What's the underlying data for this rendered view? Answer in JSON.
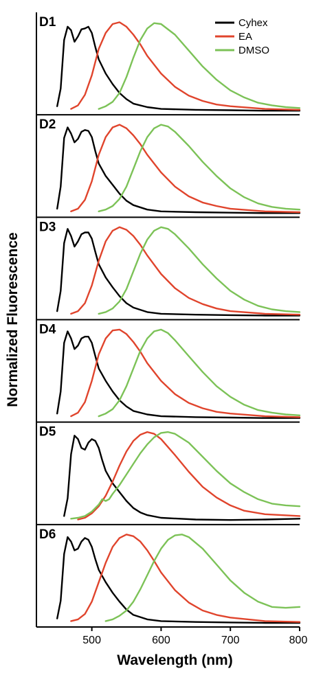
{
  "chart_data": {
    "type": "line",
    "xlabel": "Wavelength (nm)",
    "ylabel": "Normalized Fluorescence",
    "xlim": [
      420,
      800
    ],
    "xticks": [
      500,
      600,
      700,
      800
    ],
    "ylim": [
      0,
      1.05
    ],
    "legend_placement": "top-right of first panel",
    "legend": [
      "Cyhex",
      "EA",
      "DMSO"
    ],
    "colors": {
      "Cyhex": "#000000",
      "EA": "#e0442c",
      "DMSO": "#7cc257"
    },
    "panels": [
      {
        "label": "D1",
        "series": [
          {
            "name": "Cyhex",
            "x": [
              450,
              455,
              460,
              465,
              470,
              475,
              480,
              485,
              490,
              495,
              500,
              505,
              510,
              520,
              530,
              540,
              550,
              560,
              580,
              600,
              650,
              700,
              750,
              800
            ],
            "y": [
              0.05,
              0.25,
              0.8,
              0.95,
              0.91,
              0.78,
              0.84,
              0.92,
              0.93,
              0.95,
              0.88,
              0.72,
              0.58,
              0.42,
              0.3,
              0.2,
              0.13,
              0.08,
              0.04,
              0.02,
              0.01,
              0.005,
              0.0,
              0.0
            ]
          },
          {
            "name": "EA",
            "x": [
              470,
              480,
              490,
              500,
              510,
              520,
              530,
              540,
              550,
              560,
              570,
              580,
              600,
              620,
              640,
              660,
              680,
              700,
              750,
              800
            ],
            "y": [
              0.02,
              0.06,
              0.18,
              0.4,
              0.7,
              0.88,
              0.98,
              1.0,
              0.95,
              0.86,
              0.75,
              0.62,
              0.42,
              0.27,
              0.17,
              0.11,
              0.07,
              0.05,
              0.02,
              0.01
            ]
          },
          {
            "name": "DMSO",
            "x": [
              510,
              520,
              530,
              540,
              550,
              560,
              570,
              580,
              590,
              600,
              620,
              640,
              660,
              680,
              700,
              720,
              740,
              760,
              780,
              800
            ],
            "y": [
              0.02,
              0.05,
              0.1,
              0.2,
              0.38,
              0.6,
              0.8,
              0.93,
              0.99,
              0.98,
              0.86,
              0.68,
              0.5,
              0.35,
              0.23,
              0.15,
              0.09,
              0.06,
              0.04,
              0.03
            ]
          }
        ]
      },
      {
        "label": "D2",
        "series": [
          {
            "name": "Cyhex",
            "x": [
              450,
              455,
              460,
              465,
              470,
              475,
              480,
              485,
              490,
              495,
              500,
              505,
              510,
              520,
              530,
              540,
              550,
              560,
              580,
              600,
              650,
              700,
              750,
              800
            ],
            "y": [
              0.05,
              0.3,
              0.85,
              0.97,
              0.9,
              0.8,
              0.84,
              0.92,
              0.94,
              0.93,
              0.86,
              0.7,
              0.56,
              0.42,
              0.32,
              0.22,
              0.14,
              0.09,
              0.04,
              0.02,
              0.01,
              0.005,
              0.0,
              0.0
            ]
          },
          {
            "name": "EA",
            "x": [
              470,
              480,
              490,
              500,
              510,
              520,
              530,
              540,
              550,
              560,
              570,
              580,
              600,
              620,
              640,
              660,
              680,
              700,
              750,
              800
            ],
            "y": [
              0.02,
              0.05,
              0.15,
              0.36,
              0.66,
              0.86,
              0.97,
              1.0,
              0.96,
              0.88,
              0.78,
              0.66,
              0.46,
              0.3,
              0.19,
              0.12,
              0.08,
              0.05,
              0.02,
              0.01
            ]
          },
          {
            "name": "DMSO",
            "x": [
              510,
              520,
              530,
              540,
              550,
              560,
              570,
              580,
              590,
              600,
              610,
              620,
              640,
              660,
              680,
              700,
              720,
              740,
              760,
              780,
              800
            ],
            "y": [
              0.02,
              0.04,
              0.08,
              0.16,
              0.3,
              0.5,
              0.7,
              0.86,
              0.96,
              1.0,
              0.98,
              0.92,
              0.76,
              0.58,
              0.42,
              0.28,
              0.18,
              0.11,
              0.07,
              0.05,
              0.04
            ]
          }
        ]
      },
      {
        "label": "D3",
        "series": [
          {
            "name": "Cyhex",
            "x": [
              450,
              455,
              460,
              465,
              470,
              475,
              480,
              485,
              490,
              495,
              500,
              505,
              510,
              520,
              530,
              540,
              550,
              560,
              580,
              600,
              650,
              700,
              750,
              800
            ],
            "y": [
              0.05,
              0.28,
              0.82,
              0.98,
              0.9,
              0.78,
              0.84,
              0.92,
              0.94,
              0.94,
              0.87,
              0.72,
              0.58,
              0.43,
              0.32,
              0.22,
              0.14,
              0.09,
              0.04,
              0.02,
              0.01,
              0.005,
              0.0,
              0.0
            ]
          },
          {
            "name": "EA",
            "x": [
              470,
              480,
              490,
              500,
              510,
              520,
              530,
              540,
              550,
              560,
              570,
              580,
              600,
              620,
              640,
              660,
              680,
              700,
              750,
              800
            ],
            "y": [
              0.02,
              0.05,
              0.14,
              0.34,
              0.62,
              0.84,
              0.96,
              1.0,
              0.97,
              0.9,
              0.8,
              0.68,
              0.47,
              0.31,
              0.2,
              0.13,
              0.08,
              0.05,
              0.02,
              0.01
            ]
          },
          {
            "name": "DMSO",
            "x": [
              510,
              520,
              530,
              540,
              550,
              560,
              570,
              580,
              590,
              600,
              610,
              620,
              640,
              660,
              680,
              700,
              720,
              740,
              760,
              780,
              800
            ],
            "y": [
              0.02,
              0.04,
              0.08,
              0.16,
              0.3,
              0.5,
              0.7,
              0.86,
              0.96,
              1.0,
              0.98,
              0.92,
              0.76,
              0.58,
              0.42,
              0.28,
              0.18,
              0.11,
              0.07,
              0.05,
              0.04
            ]
          }
        ]
      },
      {
        "label": "D4",
        "series": [
          {
            "name": "Cyhex",
            "x": [
              450,
              455,
              460,
              465,
              470,
              475,
              480,
              485,
              490,
              495,
              500,
              505,
              510,
              520,
              530,
              540,
              550,
              560,
              580,
              600,
              650,
              700,
              750,
              800
            ],
            "y": [
              0.05,
              0.3,
              0.85,
              0.98,
              0.9,
              0.78,
              0.82,
              0.9,
              0.92,
              0.92,
              0.85,
              0.7,
              0.56,
              0.42,
              0.3,
              0.2,
              0.13,
              0.08,
              0.04,
              0.02,
              0.01,
              0.005,
              0.0,
              0.0
            ]
          },
          {
            "name": "EA",
            "x": [
              470,
              480,
              490,
              500,
              510,
              520,
              530,
              540,
              550,
              560,
              570,
              580,
              600,
              620,
              640,
              660,
              680,
              700,
              750,
              800
            ],
            "y": [
              0.02,
              0.06,
              0.18,
              0.42,
              0.72,
              0.9,
              0.99,
              1.0,
              0.95,
              0.86,
              0.75,
              0.62,
              0.42,
              0.27,
              0.17,
              0.11,
              0.07,
              0.05,
              0.02,
              0.01
            ]
          },
          {
            "name": "DMSO",
            "x": [
              510,
              520,
              530,
              540,
              550,
              560,
              570,
              580,
              590,
              600,
              610,
              620,
              640,
              660,
              680,
              700,
              720,
              740,
              760,
              780,
              800
            ],
            "y": [
              0.02,
              0.05,
              0.1,
              0.2,
              0.36,
              0.56,
              0.76,
              0.9,
              0.98,
              1.0,
              0.96,
              0.88,
              0.7,
              0.52,
              0.36,
              0.24,
              0.15,
              0.09,
              0.06,
              0.04,
              0.03
            ]
          }
        ]
      },
      {
        "label": "D5",
        "series": [
          {
            "name": "Cyhex",
            "x": [
              460,
              465,
              470,
              475,
              480,
              485,
              490,
              495,
              500,
              505,
              510,
              515,
              520,
              530,
              540,
              550,
              560,
              570,
              580,
              600,
              650,
              700,
              750,
              800
            ],
            "y": [
              0.05,
              0.25,
              0.75,
              0.96,
              0.92,
              0.82,
              0.8,
              0.88,
              0.92,
              0.9,
              0.82,
              0.68,
              0.56,
              0.42,
              0.32,
              0.22,
              0.14,
              0.09,
              0.06,
              0.03,
              0.01,
              0.005,
              0.01,
              0.02
            ]
          },
          {
            "name": "EA",
            "x": [
              480,
              490,
              500,
              510,
              520,
              530,
              540,
              550,
              560,
              570,
              580,
              590,
              600,
              620,
              640,
              660,
              680,
              700,
              720,
              750,
              800
            ],
            "y": [
              0.01,
              0.03,
              0.08,
              0.16,
              0.28,
              0.44,
              0.62,
              0.78,
              0.9,
              0.97,
              1.0,
              0.98,
              0.92,
              0.74,
              0.55,
              0.38,
              0.26,
              0.17,
              0.11,
              0.07,
              0.05
            ]
          },
          {
            "name": "DMSO",
            "x": [
              470,
              480,
              490,
              500,
              510,
              515,
              520,
              525,
              530,
              540,
              550,
              560,
              570,
              580,
              590,
              600,
              610,
              620,
              640,
              660,
              680,
              700,
              720,
              740,
              760,
              780,
              800
            ],
            "y": [
              0.02,
              0.03,
              0.05,
              0.1,
              0.18,
              0.24,
              0.22,
              0.24,
              0.3,
              0.4,
              0.52,
              0.64,
              0.76,
              0.86,
              0.94,
              0.99,
              1.0,
              0.98,
              0.88,
              0.72,
              0.56,
              0.42,
              0.32,
              0.24,
              0.19,
              0.17,
              0.16
            ]
          }
        ]
      },
      {
        "label": "D6",
        "series": [
          {
            "name": "Cyhex",
            "x": [
              450,
              455,
              460,
              465,
              470,
              475,
              480,
              485,
              490,
              495,
              500,
              505,
              510,
              520,
              530,
              540,
              550,
              560,
              580,
              600,
              650,
              700,
              750,
              800
            ],
            "y": [
              0.05,
              0.25,
              0.78,
              0.97,
              0.92,
              0.82,
              0.84,
              0.92,
              0.96,
              0.94,
              0.86,
              0.72,
              0.6,
              0.46,
              0.34,
              0.24,
              0.15,
              0.09,
              0.04,
              0.02,
              0.01,
              0.005,
              0.0,
              0.0
            ]
          },
          {
            "name": "EA",
            "x": [
              470,
              480,
              490,
              500,
              510,
              520,
              530,
              540,
              550,
              560,
              570,
              580,
              590,
              600,
              620,
              640,
              660,
              680,
              700,
              750,
              800
            ],
            "y": [
              0.02,
              0.04,
              0.1,
              0.24,
              0.46,
              0.68,
              0.86,
              0.96,
              1.0,
              0.98,
              0.92,
              0.82,
              0.7,
              0.57,
              0.37,
              0.23,
              0.14,
              0.09,
              0.06,
              0.02,
              0.01
            ]
          },
          {
            "name": "DMSO",
            "x": [
              520,
              530,
              540,
              550,
              560,
              570,
              580,
              590,
              600,
              610,
              620,
              630,
              640,
              660,
              680,
              700,
              720,
              740,
              760,
              780,
              800
            ],
            "y": [
              0.02,
              0.04,
              0.08,
              0.14,
              0.24,
              0.38,
              0.54,
              0.7,
              0.84,
              0.94,
              0.99,
              1.0,
              0.97,
              0.84,
              0.66,
              0.48,
              0.34,
              0.24,
              0.18,
              0.17,
              0.18
            ]
          }
        ]
      }
    ]
  }
}
